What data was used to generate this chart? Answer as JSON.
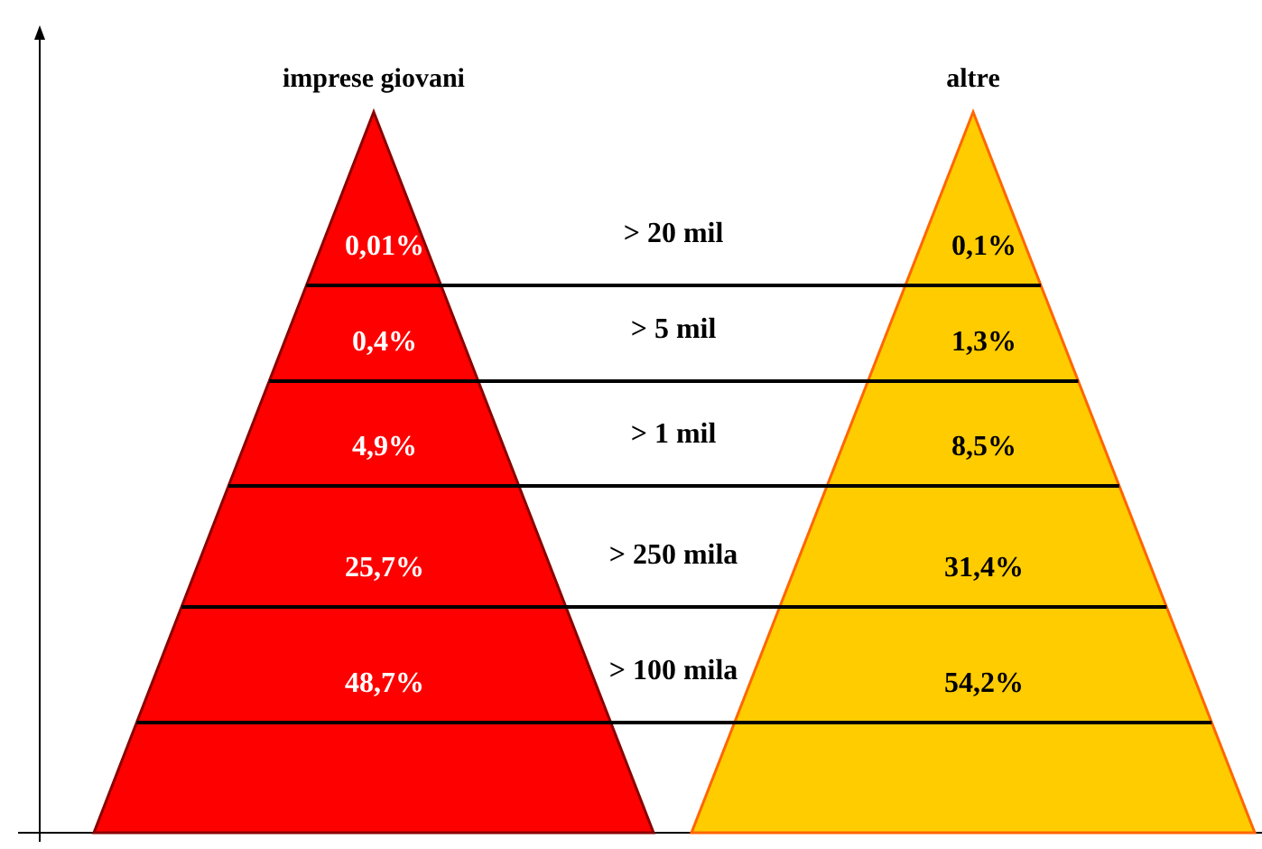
{
  "chart_data": {
    "type": "other",
    "data_labels": true,
    "categories": [
      "> 20 mil",
      "> 5 mil",
      "> 1 mil",
      "> 250 mila",
      "> 100 mila"
    ],
    "series": [
      {
        "name": "imprese giovani",
        "color": "#ff0000",
        "values": [
          0.01,
          0.4,
          4.9,
          25.7,
          48.7
        ],
        "value_labels": [
          "0,01%",
          "0,4%",
          "4,9%",
          "25,7%",
          "48,7%"
        ]
      },
      {
        "name": "altre",
        "color": "#ffcc00",
        "values": [
          0.1,
          1.3,
          8.5,
          31.4,
          54.2
        ],
        "value_labels": [
          "0,1%",
          "1,3%",
          "8,5%",
          "31,4%",
          "54,2%"
        ]
      }
    ]
  }
}
